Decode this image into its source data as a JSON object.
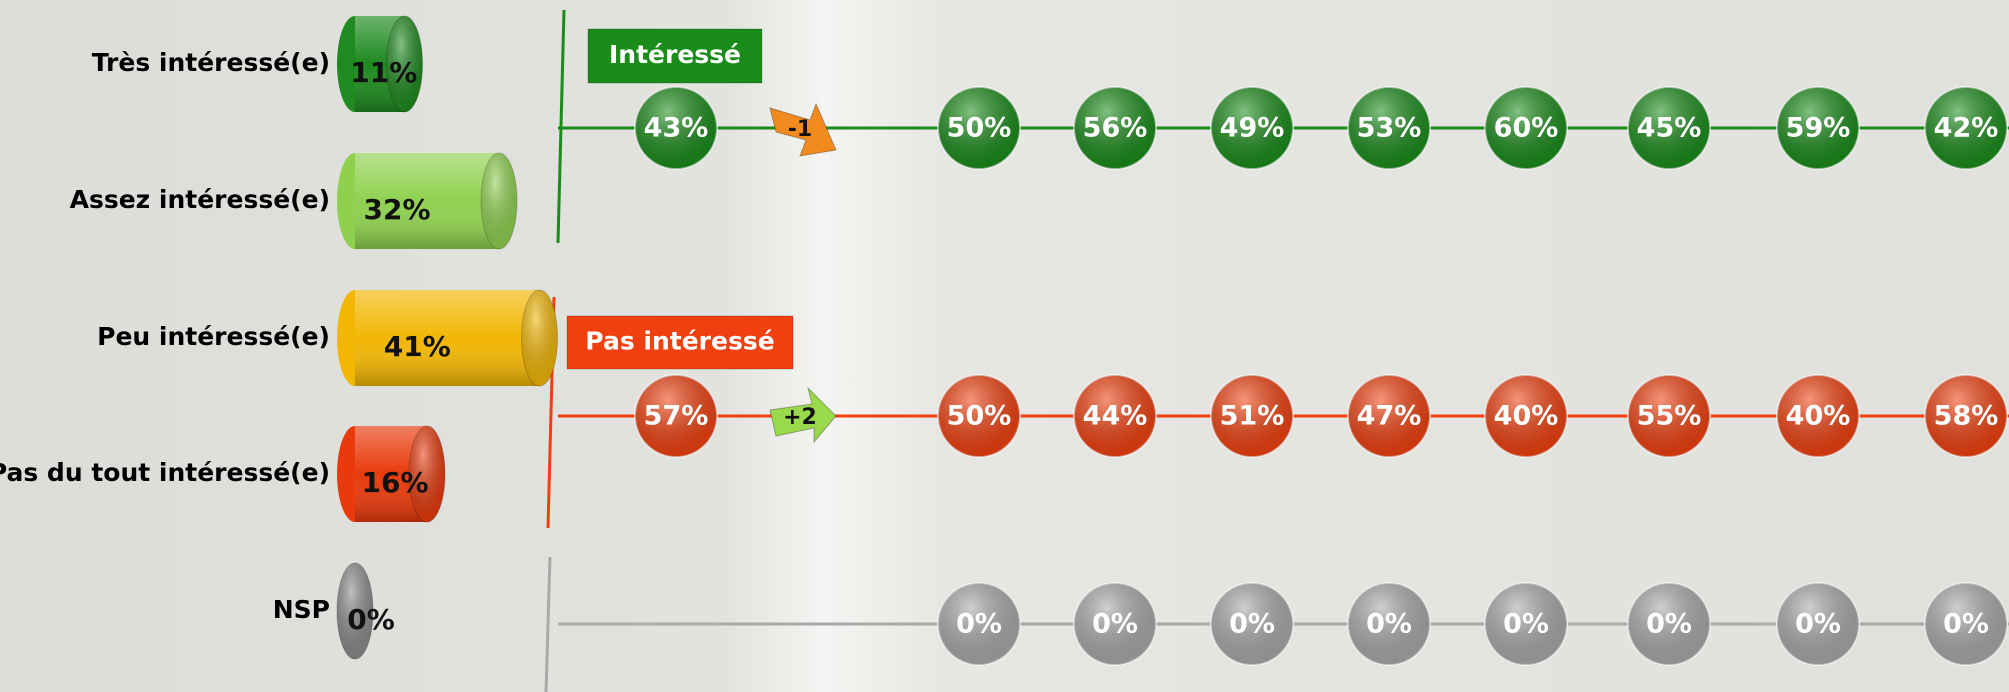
{
  "chart_data": {
    "type": "cylinder-bar",
    "categories": [
      "Très intéressé(e)",
      "Assez intéressé(e)",
      "Peu intéressé(e)",
      "Pas du tout intéressé(e)",
      "NSP"
    ],
    "values": [
      11,
      32,
      41,
      16,
      0
    ],
    "value_labels": [
      "11%",
      "32%",
      "41%",
      "16%",
      "0%"
    ],
    "colors": [
      "#1f8a1f",
      "#8fd14f",
      "#f2b705",
      "#e83a0c",
      "#8c8c8c"
    ]
  },
  "trend": {
    "groups": [
      {
        "label": "Intéressé",
        "color": "#1a8c1a",
        "values": [
          43,
          50,
          56,
          49,
          53,
          60,
          45,
          59,
          42
        ],
        "value_labels": [
          "43%",
          "50%",
          "56%",
          "49%",
          "53%",
          "60%",
          "45%",
          "59%",
          "42%"
        ],
        "change": -1
      },
      {
        "label": "Pas intéressé",
        "color": "#f0400f",
        "values": [
          57,
          50,
          44,
          51,
          47,
          40,
          55,
          40,
          58
        ],
        "value_labels": [
          "57%",
          "50%",
          "44%",
          "51%",
          "47%",
          "40%",
          "55%",
          "40%",
          "58%"
        ],
        "change": {
          "value": 2,
          "label": "+2"
        }
      },
      {
        "color": "#a9a9a9",
        "values": [
          null,
          0,
          0,
          0,
          0,
          0,
          0,
          0,
          0
        ],
        "value_labels": [
          null,
          "0%",
          "0%",
          "0%",
          "0%",
          "0%",
          "0%",
          "0%",
          "0%"
        ]
      }
    ]
  }
}
